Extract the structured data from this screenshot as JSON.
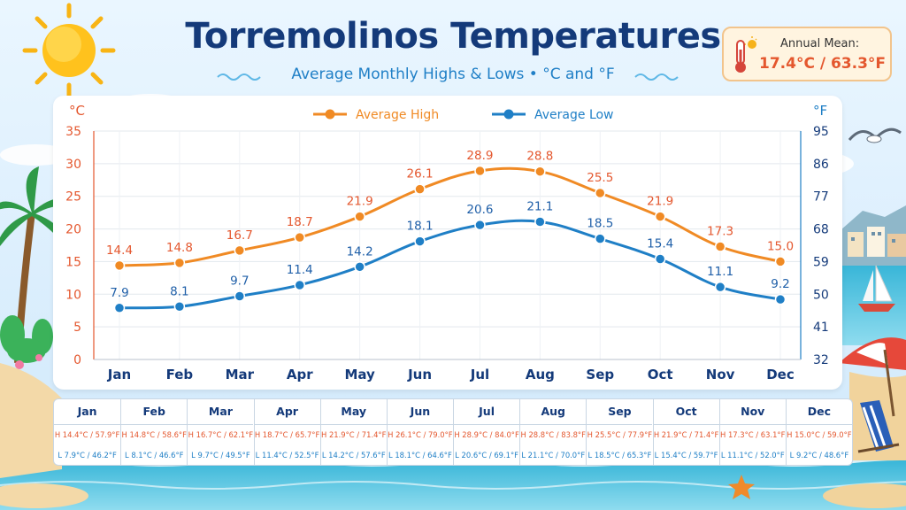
{
  "header": {
    "title": "Torremolinos Temperatures",
    "subtitle": "Average Monthly Highs & Lows • °C and °F"
  },
  "annual_mean": {
    "label": "Annual Mean:",
    "value": "17.4°C / 63.3°F"
  },
  "colors": {
    "high": "#f08a24",
    "low": "#1f7fc6",
    "title": "#143a7a",
    "axis_left": "#e4572e"
  },
  "chart_data": {
    "type": "line",
    "categories": [
      "Jan",
      "Feb",
      "Mar",
      "Apr",
      "May",
      "Jun",
      "Jul",
      "Aug",
      "Sep",
      "Oct",
      "Nov",
      "Dec"
    ],
    "series": [
      {
        "name": "Average High",
        "values": [
          14.4,
          14.8,
          16.7,
          18.7,
          21.9,
          26.1,
          28.9,
          28.8,
          25.5,
          21.9,
          17.3,
          15.0
        ],
        "labels": [
          "14.4",
          "14.8",
          "16.7",
          "18.7",
          "21.9",
          "26.1",
          "28.9",
          "28.8",
          "25.5",
          "21.9",
          "17.3",
          "15.0"
        ]
      },
      {
        "name": "Average Low",
        "values": [
          7.9,
          8.1,
          9.7,
          11.4,
          14.2,
          18.1,
          20.6,
          21.1,
          18.5,
          15.4,
          11.1,
          9.2
        ],
        "labels": [
          "7.9",
          "8.1",
          "9.7",
          "11.4",
          "14.2",
          "18.1",
          "20.6",
          "21.1",
          "18.5",
          "15.4",
          "11.1",
          "9.2"
        ]
      }
    ],
    "ylabel_left": "°C",
    "ylabel_right": "°F",
    "ylim": [
      0,
      35
    ],
    "yticks_left": [
      "0",
      "5",
      "10",
      "15",
      "20",
      "25",
      "30",
      "35"
    ],
    "yticks_right": [
      "32",
      "41",
      "50",
      "59",
      "68",
      "77",
      "86",
      "95"
    ],
    "grid": true,
    "legend_position": "top-center"
  },
  "table": [
    {
      "month": "Jan",
      "high": "H 14.4°C / 57.9°F",
      "low": "L  7.9°C / 46.2°F"
    },
    {
      "month": "Feb",
      "high": "H 14.8°C / 58.6°F",
      "low": "L  8.1°C / 46.6°F"
    },
    {
      "month": "Mar",
      "high": "H 16.7°C / 62.1°F",
      "low": "L  9.7°C / 49.5°F"
    },
    {
      "month": "Apr",
      "high": "H 18.7°C / 65.7°F",
      "low": "L 11.4°C / 52.5°F"
    },
    {
      "month": "May",
      "high": "H 21.9°C / 71.4°F",
      "low": "L 14.2°C / 57.6°F"
    },
    {
      "month": "Jun",
      "high": "H 26.1°C / 79.0°F",
      "low": "L 18.1°C / 64.6°F"
    },
    {
      "month": "Jul",
      "high": "H 28.9°C / 84.0°F",
      "low": "L 20.6°C / 69.1°F"
    },
    {
      "month": "Aug",
      "high": "H 28.8°C / 83.8°F",
      "low": "L 21.1°C / 70.0°F"
    },
    {
      "month": "Sep",
      "high": "H 25.5°C / 77.9°F",
      "low": "L 18.5°C / 65.3°F"
    },
    {
      "month": "Oct",
      "high": "H 21.9°C / 71.4°F",
      "low": "L 15.4°C / 59.7°F"
    },
    {
      "month": "Nov",
      "high": "H 17.3°C / 63.1°F",
      "low": "L 11.1°C / 52.0°F"
    },
    {
      "month": "Dec",
      "high": "H 15.0°C / 59.0°F",
      "low": "L  9.2°C / 48.6°F"
    }
  ],
  "decorations": [
    "sun-icon",
    "palm-tree-icon",
    "seagull-icon",
    "sailboat-icon",
    "beach-umbrella-icon",
    "beach-chair-icon",
    "starfish-icon",
    "town-icon",
    "thermometer-icon"
  ]
}
